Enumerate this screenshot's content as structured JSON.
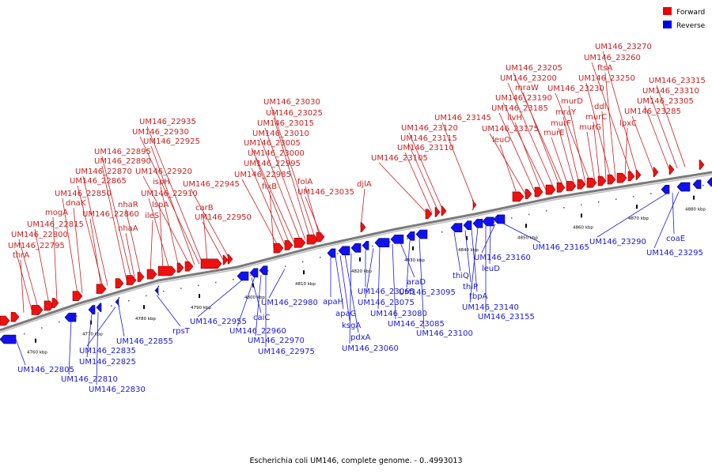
{
  "caption": "Escherichia coli UM146, complete genome. - 0..4993013",
  "legend": [
    {
      "label": "Forward",
      "color": "#ee0000"
    },
    {
      "label": "Reverse",
      "color": "#0000ee"
    }
  ],
  "colors": {
    "forward": "#ee1111",
    "reverse": "#1111ee",
    "forward_label": "#cc1f1f",
    "reverse_label": "#1a1ad6",
    "axis": "#7a7a7a"
  },
  "ticks": [
    "4760 kbp",
    "4770 kbp",
    "4780 kbp",
    "4790 kbp",
    "4800 kbp",
    "4810 kbp",
    "4820 kbp",
    "4830 kbp",
    "4840 kbp",
    "4850 kbp",
    "4860 kbp",
    "4870 kbp",
    "4880 kbp"
  ],
  "forward_labels": [
    "thrA",
    "UM146_22795",
    "UM146_22800",
    "UM146_22815",
    "mogA",
    "UM146_22850",
    "dnaK",
    "UM146_22860",
    "UM146_22865",
    "UM146_22870",
    "UM146_22890",
    "UM146_22895",
    "nhaA",
    "nhaR",
    "ileS",
    "lspA",
    "UM146_22910",
    "ispH",
    "UM146_22920",
    "UM146_22925",
    "UM146_22930",
    "UM146_22935",
    "carB",
    "UM146_22950",
    "UM146_22945",
    "fixB",
    "UM146_22985",
    "UM146_22995",
    "UM146_23000",
    "UM146_23005",
    "UM146_23010",
    "UM146_23015",
    "UM146_23025",
    "UM146_23030",
    "folA",
    "UM146_23035",
    "djlA",
    "UM146_23105",
    "UM146_23110",
    "UM146_23115",
    "UM146_23120",
    "UM146_23145",
    "leuO",
    "UM146_23175",
    "UM146_23185",
    "ilvH",
    "UM146_23190",
    "UM146_23200",
    "mraW",
    "UM146_23205",
    "murE",
    "murF",
    "mraY",
    "murD",
    "UM146_23230",
    "murG",
    "murC",
    "ddl",
    "UM146_23250",
    "ftsA",
    "lpxC",
    "UM146_23260",
    "UM146_23270",
    "UM146_23285",
    "UM146_23305",
    "UM146_23310",
    "UM146_23315"
  ],
  "reverse_labels": [
    "UM146_22805",
    "UM146_22810",
    "UM146_22825",
    "UM146_22830",
    "UM146_22835",
    "UM146_22855",
    "rpsT",
    "UM146_22955",
    "caiC",
    "UM146_22960",
    "UM146_22970",
    "UM146_22975",
    "UM146_22980",
    "apaH",
    "apaG",
    "ksgA",
    "pdxA",
    "UM146_23060",
    "UM146_23065",
    "UM146_23075",
    "UM146_23080",
    "UM146_23085",
    "araD",
    "UM146_23095",
    "UM146_23100",
    "thiQ",
    "thiP",
    "tbpA",
    "UM146_23140",
    "UM146_23155",
    "leuD",
    "UM146_23160",
    "UM146_23165",
    "UM146_23290",
    "coaE",
    "UM146_23295"
  ]
}
